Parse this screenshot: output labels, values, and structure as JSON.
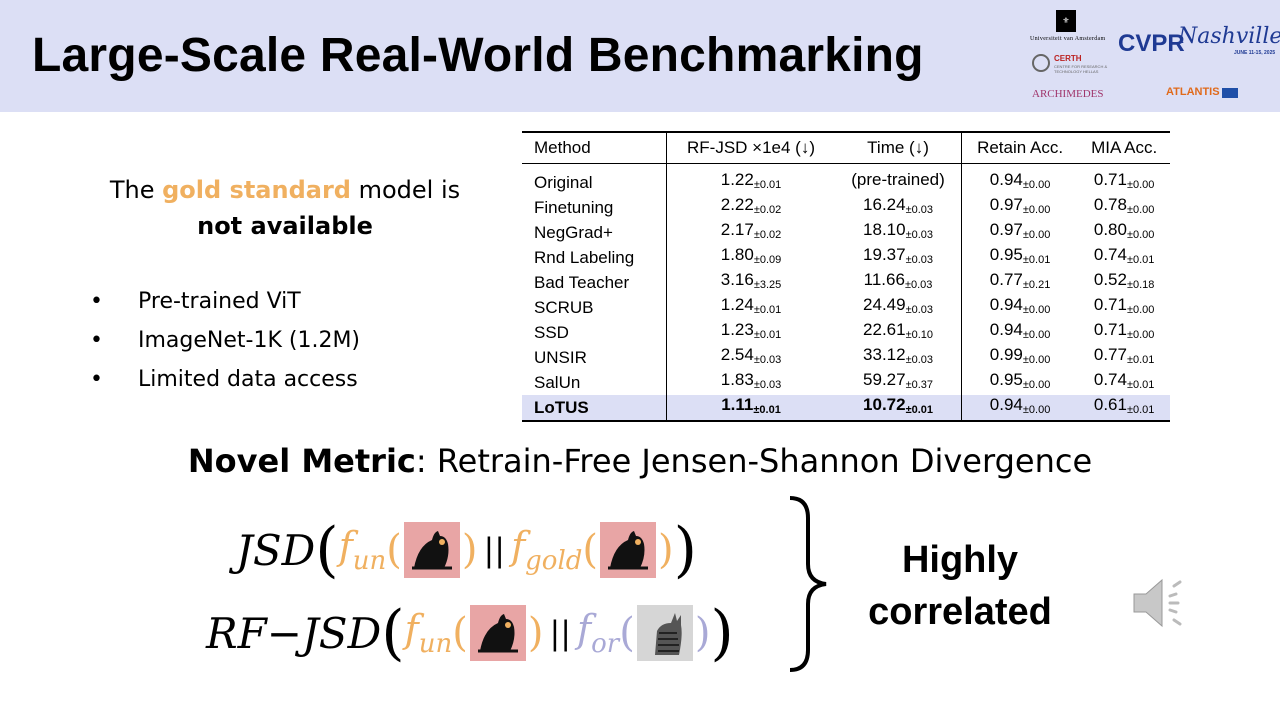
{
  "header": {
    "title": "Large-Scale Real-World Benchmarking",
    "logos": {
      "uva": "Universiteit van Amsterdam",
      "certh": "CERTH",
      "certh_sub": "CENTRE FOR RESEARCH & TECHNOLOGY HELLAS",
      "archimedes": "ARCHIMEDES",
      "cvpr": "CVPR",
      "cvpr_city": "Nashville",
      "cvpr_dates": "JUNE 11-15, 2025",
      "atlantis": "ATLANTIS"
    }
  },
  "left": {
    "gold_pre": "The ",
    "gold_word": "gold standard",
    "gold_post": " model is",
    "gold_line2": "not available",
    "bullets": [
      "Pre-trained ViT",
      "ImageNet-1K (1.2M)",
      "Limited data access"
    ]
  },
  "table": {
    "headers": [
      "Method",
      "RF-JSD ×1e4 (↓)",
      "Time (↓)",
      "Retain Acc.",
      "MIA Acc."
    ],
    "rows": [
      {
        "method": "Original",
        "rfjsd": "1.22",
        "rfjsd_pm": "±0.01",
        "time": "(pre-trained)",
        "time_pm": "",
        "retain": "0.94",
        "retain_pm": "±0.00",
        "mia": "0.71",
        "mia_pm": "±0.00"
      },
      {
        "method": "Finetuning",
        "rfjsd": "2.22",
        "rfjsd_pm": "±0.02",
        "time": "16.24",
        "time_pm": "±0.03",
        "retain": "0.97",
        "retain_pm": "±0.00",
        "mia": "0.78",
        "mia_pm": "±0.00"
      },
      {
        "method": "NegGrad+",
        "rfjsd": "2.17",
        "rfjsd_pm": "±0.02",
        "time": "18.10",
        "time_pm": "±0.03",
        "retain": "0.97",
        "retain_pm": "±0.00",
        "mia": "0.80",
        "mia_pm": "±0.00"
      },
      {
        "method": "Rnd Labeling",
        "rfjsd": "1.80",
        "rfjsd_pm": "±0.09",
        "time": "19.37",
        "time_pm": "±0.03",
        "retain": "0.95",
        "retain_pm": "±0.01",
        "mia": "0.74",
        "mia_pm": "±0.01"
      },
      {
        "method": "Bad Teacher",
        "rfjsd": "3.16",
        "rfjsd_pm": "±3.25",
        "time": "11.66",
        "time_pm": "±0.03",
        "retain": "0.77",
        "retain_pm": "±0.21",
        "mia": "0.52",
        "mia_pm": "±0.18"
      },
      {
        "method": "SCRUB",
        "rfjsd": "1.24",
        "rfjsd_pm": "±0.01",
        "time": "24.49",
        "time_pm": "±0.03",
        "retain": "0.94",
        "retain_pm": "±0.00",
        "mia": "0.71",
        "mia_pm": "±0.00"
      },
      {
        "method": "SSD",
        "rfjsd": "1.23",
        "rfjsd_pm": "±0.01",
        "time": "22.61",
        "time_pm": "±0.10",
        "retain": "0.94",
        "retain_pm": "±0.00",
        "mia": "0.71",
        "mia_pm": "±0.00"
      },
      {
        "method": "UNSIR",
        "rfjsd": "2.54",
        "rfjsd_pm": "±0.03",
        "time": "33.12",
        "time_pm": "±0.03",
        "retain": "0.99",
        "retain_pm": "±0.00",
        "mia": "0.77",
        "mia_pm": "±0.01"
      },
      {
        "method": "SalUn",
        "rfjsd": "1.83",
        "rfjsd_pm": "±0.03",
        "time": "59.27",
        "time_pm": "±0.37",
        "retain": "0.95",
        "retain_pm": "±0.00",
        "mia": "0.74",
        "mia_pm": "±0.01"
      },
      {
        "method": "LoTUS",
        "rfjsd": "1.11",
        "rfjsd_pm": "±0.01",
        "time": "10.72",
        "time_pm": "±0.01",
        "retain": "0.94",
        "retain_pm": "±0.00",
        "mia": "0.61",
        "mia_pm": "±0.01"
      }
    ]
  },
  "metric": {
    "label_bold": "Novel Metric",
    "label_rest": ": Retrain-Free Jensen-Shannon Divergence",
    "f1_name": "JSD",
    "f2_name": "RF−JSD",
    "f_symbol": "f",
    "sub_un": "un",
    "sub_gold": "gold",
    "sub_or": "or",
    "divider": "||",
    "conclusion_line1": "Highly",
    "conclusion_line2": "correlated"
  },
  "colors": {
    "header_bg": "#dcdff5",
    "gold": "#f0b060",
    "purple": "#a9a9d6",
    "highlight_row": "#dcdff5"
  },
  "icons": {
    "speaker": "speaker-icon",
    "cat_forget": "black-cat-icon",
    "cat_other": "tabby-cat-icon"
  }
}
